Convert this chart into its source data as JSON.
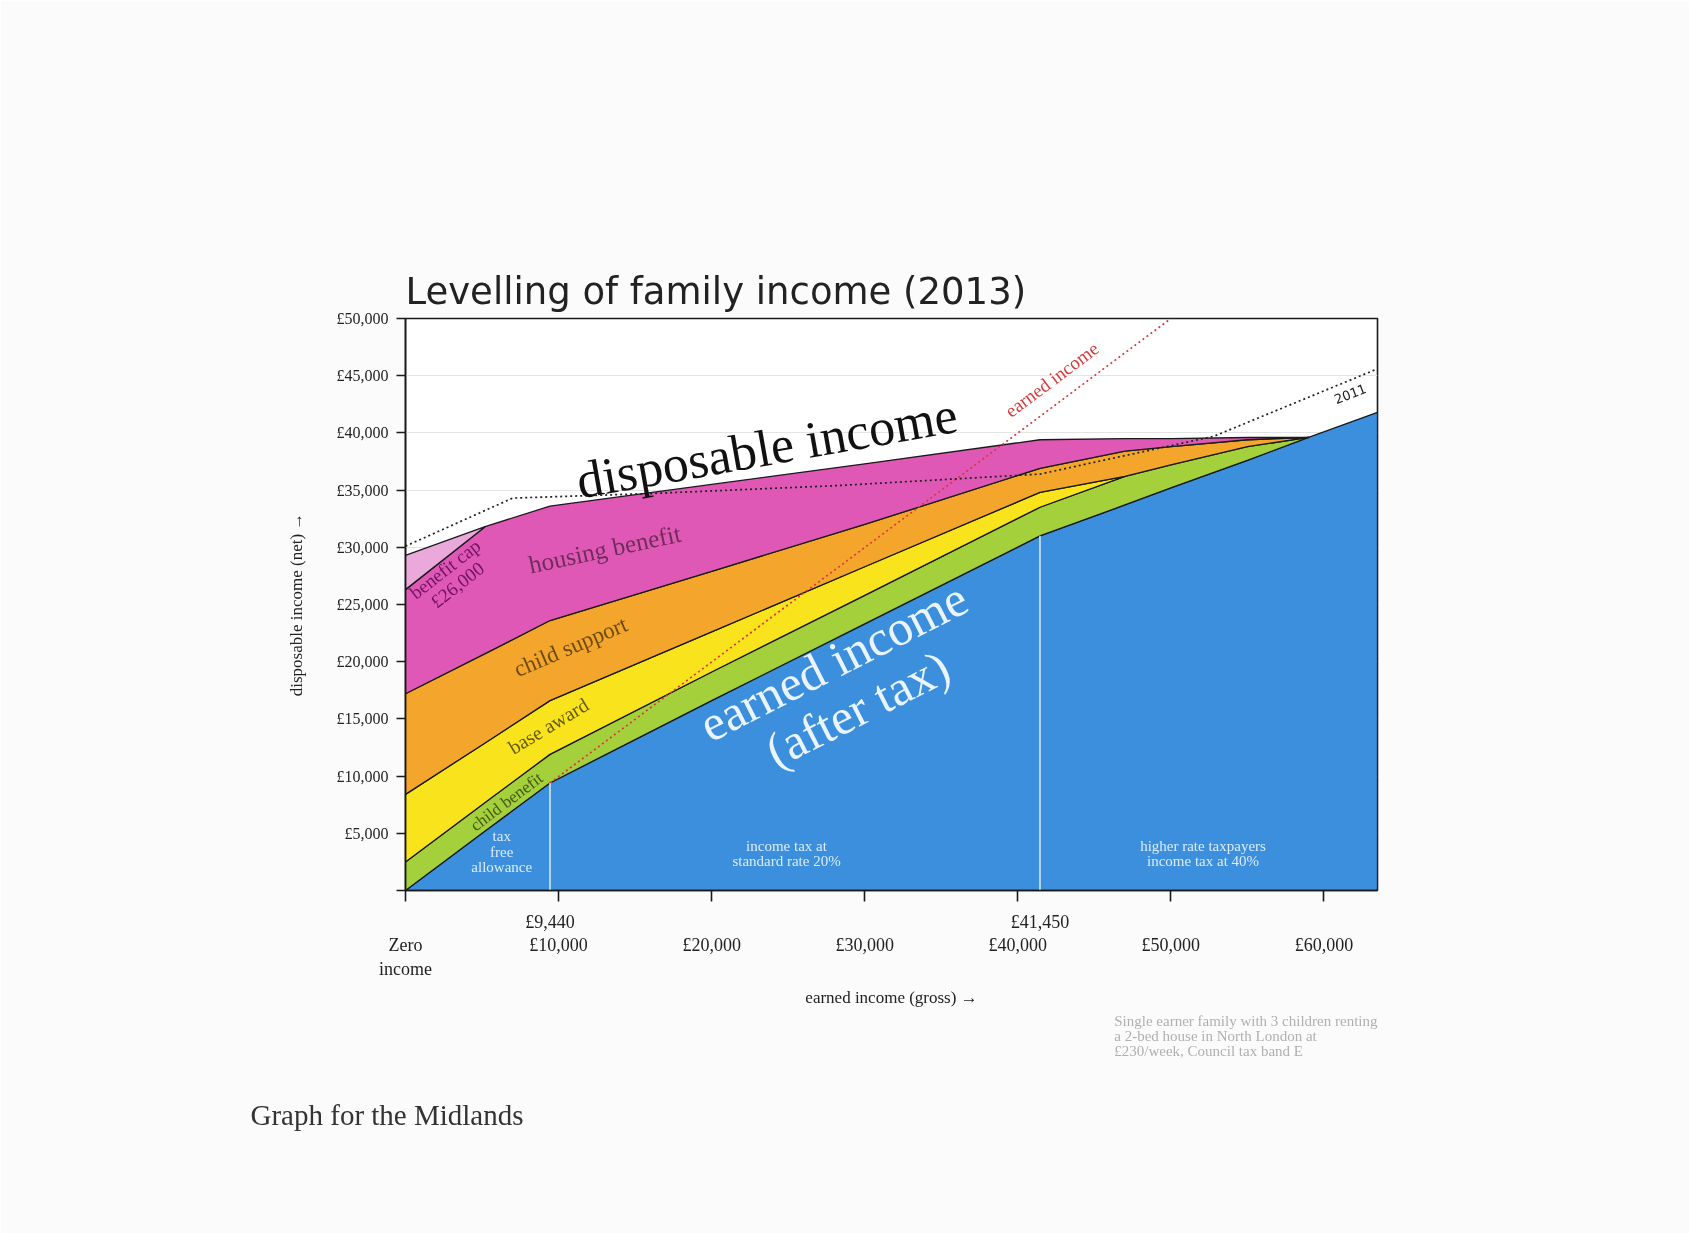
{
  "chart_data": {
    "type": "area",
    "stacked": true,
    "title": "Levelling of family income (2013)",
    "xlabel": "earned income (gross) →",
    "ylabel": "disposable income (net) →",
    "x": [
      0,
      5200,
      9440,
      20000,
      30000,
      41450,
      47000,
      50000,
      55000,
      59000,
      63500
    ],
    "xlim": [
      0,
      63500
    ],
    "xticks": [
      {
        "value": 0,
        "label": "Zero\nincome"
      },
      {
        "value": 10000,
        "label": "£10,000"
      },
      {
        "value": 20000,
        "label": "£20,000"
      },
      {
        "value": 30000,
        "label": "£30,000"
      },
      {
        "value": 40000,
        "label": "£40,000"
      },
      {
        "value": 50000,
        "label": "£50,000"
      },
      {
        "value": 60000,
        "label": "£60,000"
      }
    ],
    "ylim": [
      0,
      50000
    ],
    "yticks": [
      {
        "value": 0,
        "label": null
      },
      {
        "value": 5000,
        "label": "£5,000"
      },
      {
        "value": 10000,
        "label": "£10,000"
      },
      {
        "value": 15000,
        "label": "£15,000"
      },
      {
        "value": 20000,
        "label": "£20,000"
      },
      {
        "value": 25000,
        "label": "£25,000"
      },
      {
        "value": 30000,
        "label": "£30,000"
      },
      {
        "value": 35000,
        "label": "£35,000"
      },
      {
        "value": 40000,
        "label": "£40,000"
      },
      {
        "value": 45000,
        "label": "£45,000"
      },
      {
        "value": 50000,
        "label": "£50,000"
      }
    ],
    "grid": "y",
    "series": [
      {
        "name": "earned income\n(after tax)",
        "color": "#3b8fdc",
        "values": [
          0,
          5200,
          9400,
          16600,
          23300,
          31000,
          33700,
          35200,
          37600,
          39600,
          41800
        ]
      },
      {
        "name": "child benefit",
        "color": "#a4d03b",
        "values": [
          2500,
          2500,
          2500,
          2500,
          2500,
          2500,
          2500,
          2000,
          1200,
          0,
          null
        ]
      },
      {
        "name": "base award",
        "color": "#f9e31d",
        "values": [
          5900,
          5200,
          4700,
          3500,
          2500,
          1300,
          0,
          null,
          null,
          null,
          null
        ]
      },
      {
        "name": "child support",
        "color": "#f3a62b",
        "values": [
          8800,
          7800,
          7000,
          5300,
          3700,
          2100,
          2200,
          1600,
          600,
          0,
          null
        ]
      },
      {
        "name": "housing benefit",
        "color": "#e058b6",
        "values": [
          9100,
          11100,
          10000,
          7600,
          5300,
          2500,
          1100,
          700,
          200,
          0,
          null
        ]
      },
      {
        "color": "#eba8db",
        "values": [
          3000,
          0,
          null,
          null,
          null,
          null,
          null,
          null,
          null,
          null,
          null
        ]
      },
      {
        "type": "line",
        "name": "earned income",
        "color": "#d8393c",
        "line_style": "dotted",
        "x": [
          9440,
          50000
        ],
        "values": [
          9400,
          50000
        ]
      },
      {
        "type": "line",
        "name": "2011",
        "color": "#222222",
        "line_style": "dotted",
        "x": [
          0,
          7000,
          16000,
          28300,
          41450,
          52800,
          63500
        ],
        "values": [
          30100,
          34300,
          34700,
          35400,
          36400,
          39700,
          45600
        ]
      }
    ],
    "ref_lines": [
      {
        "axis": "x",
        "value": 9440,
        "label": "£9,440",
        "color": "#e8f2fb"
      },
      {
        "axis": "x",
        "value": 41450,
        "label": "£41,450",
        "color": "#e8f2fb"
      }
    ],
    "annotations": [
      "disposable income",
      "benefit cap\n£26,000",
      "tax\nfree\nallowance",
      "income tax at\nstandard rate 20%",
      "higher rate taxpayers\nincome tax at 40%",
      "Single earner family with 3 children renting\na 2-bed house in North London at\n£230/week, Council tax band E",
      "Graph for the Midlands"
    ]
  }
}
